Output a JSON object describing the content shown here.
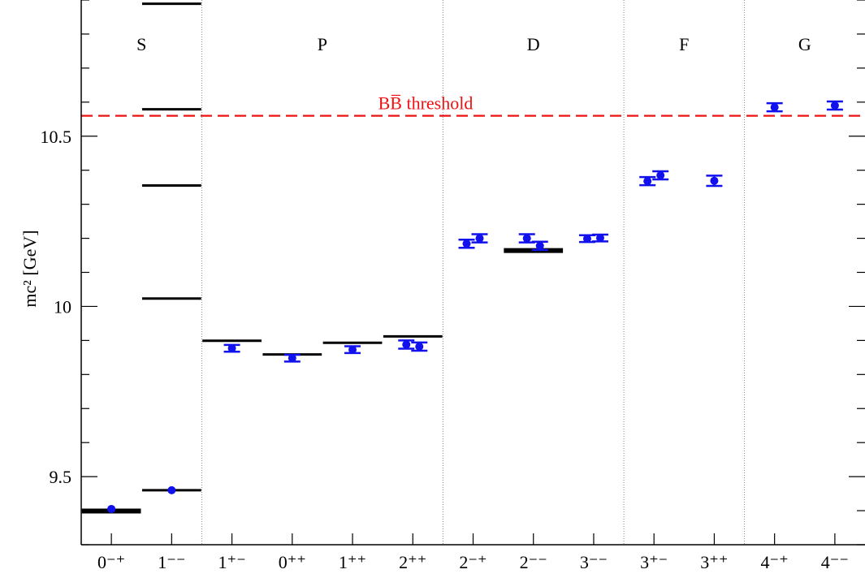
{
  "chart_data": {
    "type": "scatter",
    "title": "",
    "ylabel": "mc² [GeV]",
    "ylim": [
      9.3,
      10.9
    ],
    "yticks": [
      {
        "value": 9.5,
        "label": "9.5"
      },
      {
        "value": 10.0,
        "label": "10"
      },
      {
        "value": 10.5,
        "label": "10.5"
      }
    ],
    "categories": [
      "0⁻⁺",
      "1⁻⁻",
      "1⁺⁻",
      "0⁺⁺",
      "1⁺⁺",
      "2⁺⁺",
      "2⁻⁺",
      "2⁻⁻",
      "3⁻⁻",
      "3⁺⁻",
      "3⁺⁺",
      "4⁻⁺",
      "4⁻⁻"
    ],
    "groups": [
      {
        "name": "S",
        "from": 0,
        "to": 1
      },
      {
        "name": "P",
        "from": 2,
        "to": 5
      },
      {
        "name": "D",
        "from": 6,
        "to": 8
      },
      {
        "name": "F",
        "from": 9,
        "to": 10
      },
      {
        "name": "G",
        "from": 11,
        "to": 12
      }
    ],
    "threshold": {
      "label": "BB̅ threshold",
      "value": 10.56,
      "color": "#ee1111"
    },
    "experiment": [
      {
        "cat": 0,
        "mass": 9.399,
        "thick": true
      },
      {
        "cat": 1,
        "mass": 9.46
      },
      {
        "cat": 1,
        "mass": 10.023
      },
      {
        "cat": 1,
        "mass": 10.355
      },
      {
        "cat": 1,
        "mass": 10.579
      },
      {
        "cat": 1,
        "mass": 10.889
      },
      {
        "cat": 2,
        "mass": 9.899
      },
      {
        "cat": 3,
        "mass": 9.859
      },
      {
        "cat": 4,
        "mass": 9.893
      },
      {
        "cat": 5,
        "mass": 9.912
      },
      {
        "cat": 7,
        "mass": 10.164,
        "thick": true
      }
    ],
    "lattice": [
      {
        "cat": 0,
        "offset": 0,
        "value": 9.405,
        "err": 0.0
      },
      {
        "cat": 1,
        "offset": 0,
        "value": 9.46,
        "err": 0.0
      },
      {
        "cat": 2,
        "offset": 0,
        "value": 9.877,
        "err": 0.01
      },
      {
        "cat": 3,
        "offset": 0,
        "value": 9.848,
        "err": 0.01
      },
      {
        "cat": 4,
        "offset": 0,
        "value": 9.873,
        "err": 0.01
      },
      {
        "cat": 5,
        "offset": -1,
        "value": 9.888,
        "err": 0.012
      },
      {
        "cat": 5,
        "offset": 1,
        "value": 9.882,
        "err": 0.012
      },
      {
        "cat": 6,
        "offset": -1,
        "value": 10.184,
        "err": 0.012
      },
      {
        "cat": 6,
        "offset": 1,
        "value": 10.2,
        "err": 0.012
      },
      {
        "cat": 7,
        "offset": -1,
        "value": 10.2,
        "err": 0.012
      },
      {
        "cat": 7,
        "offset": 1,
        "value": 10.178,
        "err": 0.012
      },
      {
        "cat": 8,
        "offset": -1,
        "value": 10.199,
        "err": 0.01
      },
      {
        "cat": 8,
        "offset": 1,
        "value": 10.201,
        "err": 0.01
      },
      {
        "cat": 9,
        "offset": -1,
        "value": 10.368,
        "err": 0.012
      },
      {
        "cat": 9,
        "offset": 1,
        "value": 10.385,
        "err": 0.012
      },
      {
        "cat": 10,
        "offset": 0,
        "value": 10.369,
        "err": 0.015
      },
      {
        "cat": 11,
        "offset": 0,
        "value": 10.585,
        "err": 0.012
      },
      {
        "cat": 12,
        "offset": 0,
        "value": 10.59,
        "err": 0.012
      }
    ],
    "colors": {
      "lattice": "#1111ee",
      "experiment": "#000000",
      "threshold": "#ee1111",
      "separator": "#888888"
    },
    "grid": false,
    "legend": "none"
  }
}
